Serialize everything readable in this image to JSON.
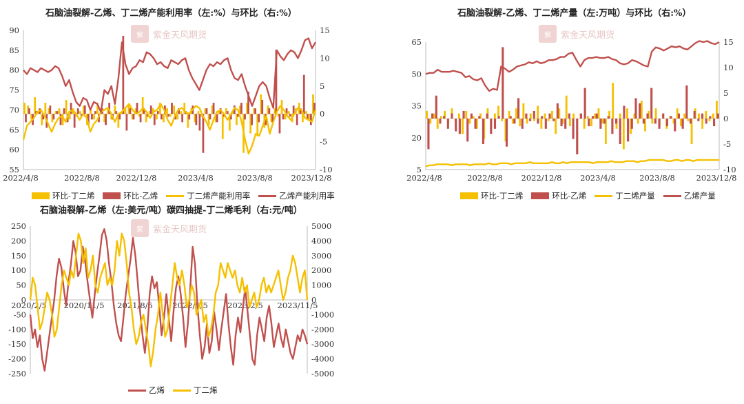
{
  "colors": {
    "ethylene": "#c0504d",
    "butadiene": "#f5c000",
    "axis": "#bbbbbb"
  },
  "watermark": {
    "text": "紫金天风期货"
  },
  "chart_data": [
    {
      "id": "p1",
      "title": "石脑油裂解-乙烯、丁二烯产能利用率（左:%）与环比（右:%）",
      "type": "bar+line",
      "left_axis": {
        "min": 55,
        "max": 90,
        "ticks": [
          90,
          85,
          80,
          75,
          70,
          65,
          60,
          55
        ]
      },
      "right_axis": {
        "min": -10,
        "max": 15,
        "ticks": [
          15,
          10,
          5,
          0,
          -5,
          -10
        ]
      },
      "x_labels": [
        "2022/4/8",
        "2022/8/8",
        "2022/12/8",
        "2023/4/8",
        "2023/8/8",
        "2023/12/8"
      ],
      "legend": [
        "环比-丁二烯",
        "环比-乙烯",
        "丁二烯产能利用率",
        "乙烯产能利用率"
      ],
      "series": [
        {
          "name": "环比-丁二烯",
          "kind": "bar",
          "axis": "right",
          "color": "#f5c000",
          "values": [
            2.0,
            1.5,
            -1.0,
            3.0,
            0.5,
            -2.0,
            2.0,
            1.0,
            -1.5,
            0.5,
            1.0,
            -2.0,
            2.5,
            -1.0,
            1.0,
            -0.5,
            0.5,
            1.5,
            -2.0,
            1.0,
            -1.0,
            2.0,
            0.5,
            -1.5,
            1.0,
            -1.0,
            1.5,
            -2.5,
            0.5,
            1.0,
            1.5,
            -1.0,
            1.0,
            -0.5,
            3.0,
            -1.5,
            0.5,
            1.0,
            -1.0,
            2.0,
            -1.5,
            1.0,
            -0.5,
            1.5,
            -1.0,
            0.5,
            2.0,
            -2.5,
            1.0,
            -1.5,
            0.5,
            -0.5,
            1.0,
            -2.0,
            1.5,
            -1.5,
            0.5,
            -4.5,
            1.0,
            -3.0,
            0.5,
            -2.0,
            1.5,
            -7.0,
            2.0,
            -3.5,
            1.0,
            -4.0,
            3.5,
            -2.5,
            1.5,
            -1.5,
            1.0,
            -0.5,
            2.5,
            -1.0,
            0.5,
            -1.5,
            1.0,
            2.0,
            -1.5,
            0.5,
            -1.0,
            3.5
          ]
        },
        {
          "name": "环比-乙烯",
          "kind": "bar",
          "axis": "right",
          "color": "#c0504d",
          "values": [
            -1.5,
            1.0,
            -2.0,
            0.5,
            1.0,
            -1.0,
            -2.5,
            1.5,
            -1.0,
            0.5,
            -2.0,
            1.0,
            -1.5,
            2.0,
            -2.5,
            1.0,
            -0.5,
            1.5,
            -2.0,
            -1.0,
            0.5,
            -1.5,
            1.0,
            -2.0,
            2.0,
            -1.0,
            0.5,
            -1.0,
            14.0,
            -3.0,
            1.0,
            -1.0,
            2.0,
            -1.5,
            1.0,
            -0.5,
            1.5,
            -2.0,
            0.5,
            -1.0,
            1.5,
            -0.5,
            2.0,
            -1.0,
            1.0,
            -1.5,
            0.5,
            -1.0,
            1.5,
            -2.0,
            -3.0,
            -7.0,
            1.0,
            -1.0,
            2.0,
            -1.5,
            1.0,
            -0.5,
            0.5,
            -1.0,
            1.5,
            -0.5,
            2.0,
            -1.0,
            4.0,
            -2.0,
            1.0,
            -1.5,
            2.5,
            -2.0,
            1.0,
            -1.5,
            11.5,
            -3.5,
            -1.0,
            1.0,
            -0.5,
            1.5,
            -2.0,
            1.0,
            7.0,
            -1.0,
            -2.0,
            2.0
          ]
        },
        {
          "name": "丁二烯产能利用率",
          "kind": "line",
          "axis": "left",
          "color": "#f5c000",
          "values": [
            62.5,
            66.0,
            67.0,
            68.0,
            69.5,
            70.0,
            68.5,
            66.5,
            64.5,
            66.5,
            68.0,
            68.5,
            67.0,
            69.5,
            70.0,
            69.0,
            67.5,
            69.0,
            68.0,
            64.5,
            66.5,
            67.5,
            69.5,
            70.0,
            70.5,
            69.0,
            67.0,
            69.0,
            69.5,
            70.5,
            71.5,
            70.0,
            69.0,
            69.5,
            70.5,
            69.5,
            68.0,
            69.5,
            70.0,
            71.5,
            70.0,
            67.5,
            66.0,
            68.5,
            70.0,
            70.5,
            69.5,
            69.0,
            70.0,
            71.0,
            70.5,
            68.5,
            67.0,
            65.0,
            67.5,
            69.5,
            70.0,
            69.0,
            67.5,
            69.0,
            70.5,
            70.0,
            67.0,
            62.5,
            59.0,
            61.0,
            64.0,
            63.5,
            66.0,
            68.5,
            64.0,
            67.0,
            69.5,
            71.0,
            70.0,
            68.5,
            67.5,
            69.0,
            70.5,
            70.0,
            68.0,
            67.5,
            67.0,
            70.0
          ]
        },
        {
          "name": "乙烯产能利用率",
          "kind": "line",
          "axis": "left",
          "color": "#c0504d",
          "values": [
            80.0,
            79.0,
            80.5,
            80.0,
            79.5,
            80.5,
            80.0,
            79.5,
            80.0,
            81.0,
            80.5,
            78.5,
            76.0,
            77.5,
            74.5,
            72.0,
            71.0,
            73.0,
            72.5,
            70.0,
            72.0,
            71.5,
            69.5,
            75.0,
            74.0,
            76.0,
            71.5,
            78.0,
            87.0,
            81.5,
            79.0,
            80.5,
            81.0,
            82.5,
            82.0,
            84.5,
            84.0,
            83.0,
            81.5,
            82.0,
            81.0,
            80.5,
            82.5,
            82.0,
            81.5,
            82.5,
            83.0,
            80.0,
            78.0,
            76.5,
            75.0,
            77.5,
            80.0,
            81.5,
            81.0,
            82.0,
            81.5,
            82.5,
            83.0,
            80.0,
            78.0,
            77.5,
            79.0,
            76.0,
            73.5,
            71.0,
            73.5,
            76.0,
            77.0,
            76.0,
            73.0,
            70.5,
            85.0,
            83.5,
            82.5,
            84.0,
            85.0,
            84.5,
            83.0,
            85.0,
            87.5,
            88.0,
            85.5,
            87.0
          ]
        }
      ]
    },
    {
      "id": "p2",
      "title": "石脑油裂解-乙烯、丁二烯产量（左:万吨）与环比（右:%）",
      "type": "bar+line",
      "left_axis": {
        "min": 5,
        "max": 65,
        "ticks": [
          65,
          50,
          35,
          20,
          5
        ]
      },
      "right_axis": {
        "min": -10,
        "max": 15,
        "ticks": [
          15,
          10,
          5,
          0,
          -5,
          -10
        ]
      },
      "x_labels": [
        "2022/4/8",
        "2022/8/8",
        "2022/12/8",
        "2023/4/8",
        "2023/8/8",
        "2023/12/8"
      ],
      "legend": [
        "环比-丁二烯",
        "环比-乙烯",
        "丁二烯产量",
        "乙烯产量"
      ],
      "series": [
        {
          "name": "环比-丁二烯",
          "kind": "bar",
          "axis": "right",
          "color": "#f5c000",
          "values": [
            1.5,
            -1.0,
            1.0,
            -2.0,
            0.5,
            1.5,
            -1.0,
            2.0,
            -0.5,
            1.0,
            -3.0,
            1.5,
            -1.0,
            0.5,
            -2.0,
            1.0,
            -4.0,
            2.0,
            -1.5,
            1.0,
            2.5,
            -0.5,
            -4.5,
            1.5,
            -1.0,
            2.0,
            -1.5,
            3.0,
            -1.0,
            1.0,
            -0.5,
            2.5,
            -2.0,
            1.0,
            -0.5,
            1.5,
            -3.0,
            2.0,
            -1.0,
            4.5,
            -1.5,
            1.0,
            -0.5,
            1.0,
            -2.0,
            0.5,
            -1.5,
            1.0,
            2.0,
            -1.0,
            -5.0,
            1.5,
            7.0,
            -2.0,
            1.0,
            -6.0,
            2.0,
            -3.0,
            1.0,
            -1.0,
            3.5,
            -2.5,
            1.5,
            -1.0,
            2.0,
            -1.5,
            1.0,
            -2.0,
            0.5,
            -1.0,
            2.0,
            -1.5,
            1.0,
            -0.5,
            -5.0,
            2.0,
            1.0,
            -2.0,
            1.5,
            -0.5,
            1.0,
            3.5
          ]
        },
        {
          "name": "环比-乙烯",
          "kind": "bar",
          "axis": "right",
          "color": "#c0504d",
          "values": [
            -6.0,
            1.0,
            4.5,
            -1.0,
            0.5,
            -2.0,
            1.0,
            -2.5,
            -3.0,
            1.5,
            -4.5,
            1.0,
            -2.0,
            0.5,
            -5.0,
            1.0,
            -3.0,
            -2.0,
            0.5,
            14.0,
            -5.5,
            0.5,
            -1.0,
            4.0,
            -2.0,
            1.0,
            -0.5,
            1.5,
            -1.0,
            0.5,
            -2.0,
            1.0,
            -0.5,
            3.0,
            -1.5,
            -2.0,
            1.0,
            -4.0,
            -7.0,
            1.0,
            6.0,
            -1.5,
            0.5,
            1.0,
            -2.0,
            -1.0,
            0.5,
            -3.0,
            -1.0,
            -5.0,
            2.5,
            -4.5,
            -2.0,
            4.0,
            3.0,
            -1.0,
            1.0,
            6.0,
            -1.0,
            -2.0,
            1.0,
            -1.5,
            0.5,
            -2.5,
            1.0,
            -2.0,
            6.5,
            -1.0,
            1.5,
            -0.5,
            1.0,
            -1.0,
            0.5,
            -1.5,
            1.0
          ]
        },
        {
          "name": "丁二烯产量",
          "kind": "line",
          "axis": "left",
          "color": "#f5c000",
          "values": [
            6.5,
            7.0,
            7.0,
            7.5,
            7.5,
            7.5,
            7.5,
            7.0,
            7.5,
            7.5,
            7.5,
            7.5,
            7.0,
            7.5,
            7.5,
            7.5,
            7.5,
            8.0,
            7.5,
            7.5,
            8.0,
            8.0,
            8.0,
            7.5,
            8.0,
            8.0,
            8.0,
            8.0,
            8.5,
            8.0,
            8.0,
            8.0,
            8.0,
            8.0,
            8.5,
            8.0,
            8.0,
            8.5,
            8.0,
            8.5,
            8.5,
            8.5,
            8.5,
            8.5,
            8.5,
            8.0,
            8.5,
            8.5,
            8.5,
            8.5,
            9.0,
            8.5,
            8.5,
            8.5,
            9.0,
            9.0,
            9.0,
            8.5,
            9.0,
            9.0,
            9.5,
            9.5,
            9.5,
            9.5,
            9.5,
            9.0,
            9.0,
            9.5,
            9.5,
            9.0,
            9.5,
            9.5,
            9.0,
            9.5,
            9.5,
            9.5,
            9.5,
            9.5,
            9.5,
            9.5
          ]
        },
        {
          "name": "乙烯产量",
          "kind": "line",
          "axis": "left",
          "color": "#c0504d",
          "values": [
            50.0,
            50.5,
            50.5,
            52.0,
            51.0,
            51.0,
            51.0,
            51.5,
            51.0,
            50.5,
            48.5,
            49.0,
            47.5,
            47.0,
            48.0,
            44.5,
            42.0,
            43.0,
            42.5,
            53.5,
            52.5,
            51.0,
            52.0,
            53.5,
            54.0,
            54.5,
            55.5,
            55.0,
            56.0,
            55.0,
            55.5,
            56.5,
            56.5,
            57.0,
            58.0,
            58.0,
            59.5,
            60.0,
            56.5,
            53.5,
            56.5,
            57.5,
            57.5,
            58.0,
            57.5,
            57.5,
            58.0,
            57.0,
            56.5,
            55.0,
            54.5,
            55.0,
            56.5,
            56.0,
            55.0,
            54.0,
            53.5,
            60.5,
            62.5,
            62.0,
            61.0,
            62.0,
            63.0,
            62.5,
            63.0,
            62.0,
            61.5,
            63.0,
            64.5,
            65.5,
            65.0,
            65.5,
            64.5,
            64.0,
            65.0
          ]
        }
      ]
    },
    {
      "id": "p3",
      "title": "石脑油裂解-乙烯（左:美元/吨）碳四抽提-丁二烯毛利（右:元/吨）",
      "type": "line",
      "left_axis": {
        "min": -250,
        "max": 250,
        "ticks": [
          250,
          200,
          150,
          100,
          50,
          0,
          -50,
          -100,
          -150,
          -200,
          -250
        ]
      },
      "right_axis": {
        "min": -5000,
        "max": 5000,
        "ticks": [
          5000,
          4000,
          3000,
          2000,
          1000,
          0,
          -1000,
          -2000,
          -3000,
          -4000,
          -5000
        ]
      },
      "x_labels": [
        "2020/2/5",
        "2020/11/5",
        "2021/8/5",
        "2022/5/5",
        "2023/2/5",
        "2023/11/5"
      ],
      "legend": [
        "乙烯",
        "丁二烯"
      ],
      "series": [
        {
          "name": "乙烯",
          "kind": "line",
          "axis": "left",
          "color": "#c0504d",
          "values": [
            -50,
            -130,
            -100,
            -160,
            -120,
            -200,
            -240,
            -180,
            -120,
            -60,
            0,
            80,
            140,
            110,
            40,
            -20,
            60,
            120,
            200,
            160,
            80,
            100,
            180,
            130,
            60,
            0,
            -60,
            20,
            90,
            150,
            220,
            240,
            200,
            120,
            60,
            -20,
            -80,
            -120,
            -140,
            -60,
            20,
            80,
            140,
            210,
            150,
            60,
            -40,
            -120,
            -180,
            -100,
            20,
            80,
            40,
            60,
            -20,
            -120,
            -60,
            20,
            -60,
            -140,
            -40,
            40,
            80,
            20,
            -60,
            -160,
            -80,
            40,
            180,
            120,
            -20,
            -120,
            -200,
            -160,
            -80,
            -180,
            -140,
            -40,
            -100,
            -170,
            -100,
            -40,
            20,
            -80,
            -160,
            -220,
            -120,
            -60,
            -110,
            -30,
            40,
            -40,
            -120,
            -200,
            -220,
            -120,
            -60,
            -100,
            -140,
            -60,
            -20,
            -80,
            -160,
            -120,
            -80,
            -130,
            -160,
            -100,
            -140,
            -180,
            -200,
            -160,
            -120,
            -140,
            -100,
            -120,
            -150
          ]
        },
        {
          "name": "丁二烯",
          "kind": "line",
          "axis": "right",
          "color": "#f5c000",
          "values": [
            0,
            1500,
            1000,
            -500,
            -2000,
            -1500,
            -500,
            500,
            0,
            -1000,
            -2500,
            -2000,
            -500,
            1000,
            2000,
            1500,
            1000,
            2000,
            1500,
            3000,
            4500,
            4000,
            2500,
            3500,
            1500,
            2000,
            3000,
            1000,
            500,
            1500,
            2000,
            2500,
            1000,
            1500,
            1000,
            2000,
            4000,
            3000,
            4500,
            4000,
            2500,
            500,
            -500,
            -2000,
            -3000,
            -2500,
            -1500,
            -1000,
            -2000,
            -3000,
            -4500,
            -3500,
            -2000,
            -1000,
            500,
            -1000,
            -2500,
            -2000,
            -500,
            1000,
            2500,
            1500,
            1000,
            2000,
            1000,
            -500,
            0,
            1000,
            500,
            -1000,
            -500,
            0,
            -1500,
            -1000,
            -2500,
            -2000,
            -1000,
            500,
            1000,
            2500,
            2000,
            1500,
            2500,
            2000,
            1500,
            2000,
            1000,
            500,
            1500,
            500,
            1000,
            -500,
            0,
            500,
            -500,
            0,
            1000,
            1500,
            500,
            1000,
            500,
            1000,
            1500,
            2000,
            1000,
            0,
            500,
            1500,
            2000,
            3000,
            2500,
            1500,
            500,
            1500,
            2000,
            0
          ]
        }
      ]
    }
  ]
}
